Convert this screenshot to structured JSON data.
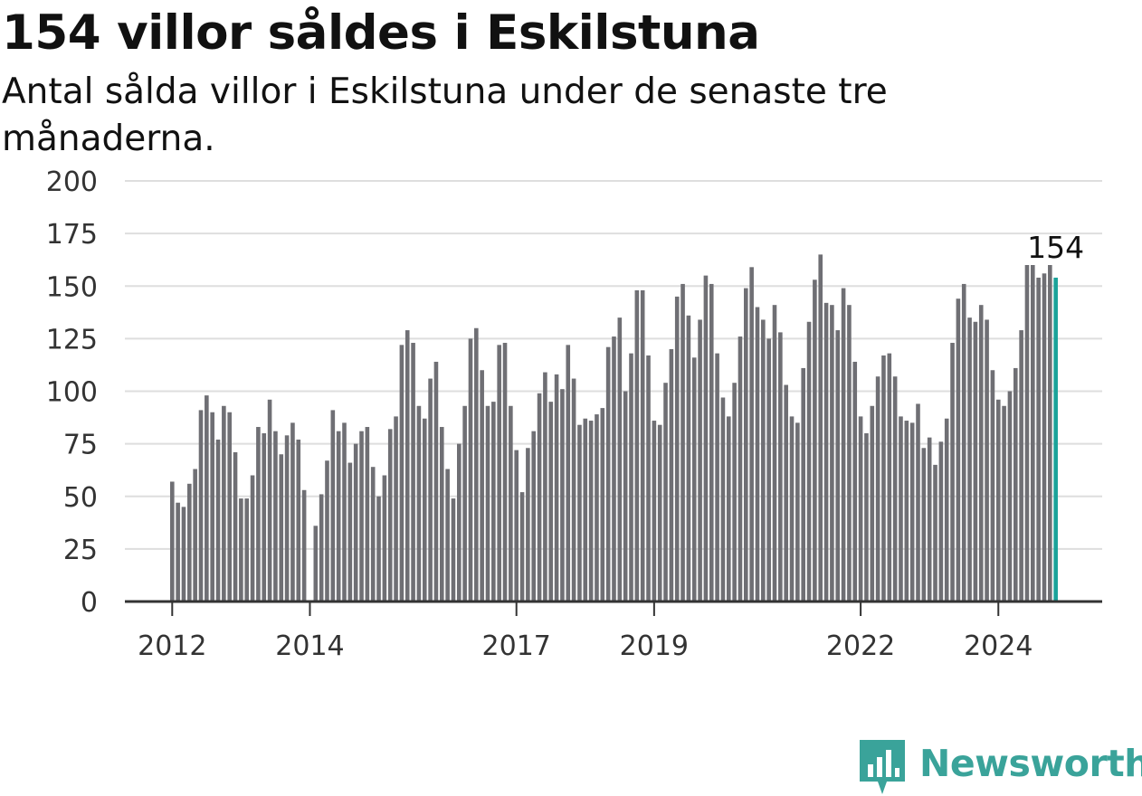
{
  "title": "154 villor såldes i Eskilstuna",
  "subtitle": "Antal sålda villor i Eskilstuna under de senaste tre månaderna.",
  "brand": {
    "name": "Newsworthy",
    "icon": "bar-chart-speech-bubble-icon",
    "color": "#3aa39a"
  },
  "colors": {
    "bar": "#6f6f74",
    "highlight": "#1aa39a",
    "grid": "#dedede",
    "axis": "#333333"
  },
  "chart_data": {
    "type": "bar",
    "xlabel": "",
    "ylabel": "",
    "ylim": [
      0,
      200
    ],
    "y_ticks": [
      "0",
      "25",
      "50",
      "75",
      "100",
      "125",
      "150",
      "175",
      "200"
    ],
    "x_ticks": [
      "2012",
      "2014",
      "2017",
      "2019",
      "2022",
      "2024"
    ],
    "grid": true,
    "highlight_label": "154",
    "values": [
      57,
      47,
      45,
      56,
      63,
      91,
      98,
      90,
      77,
      93,
      90,
      71,
      49,
      49,
      60,
      83,
      80,
      96,
      81,
      70,
      79,
      85,
      77,
      53,
      null,
      36,
      51,
      67,
      91,
      81,
      85,
      66,
      75,
      81,
      83,
      64,
      50,
      60,
      82,
      88,
      122,
      129,
      123,
      93,
      87,
      106,
      114,
      83,
      63,
      49,
      75,
      93,
      125,
      130,
      110,
      93,
      95,
      122,
      123,
      93,
      72,
      52,
      73,
      81,
      99,
      109,
      95,
      108,
      101,
      122,
      106,
      84,
      87,
      86,
      89,
      92,
      121,
      126,
      135,
      100,
      118,
      148,
      148,
      117,
      86,
      84,
      104,
      120,
      145,
      151,
      136,
      116,
      134,
      155,
      151,
      118,
      97,
      88,
      104,
      126,
      149,
      159,
      140,
      134,
      125,
      141,
      128,
      103,
      88,
      85,
      111,
      133,
      153,
      165,
      142,
      141,
      129,
      149,
      141,
      114,
      88,
      80,
      93,
      107,
      117,
      118,
      107,
      88,
      86,
      85,
      94,
      73,
      78,
      65,
      76,
      87,
      123,
      144,
      151,
      135,
      133,
      141,
      134,
      110,
      96,
      93,
      100,
      111,
      129,
      160,
      160,
      154,
      156,
      160,
      154
    ]
  }
}
